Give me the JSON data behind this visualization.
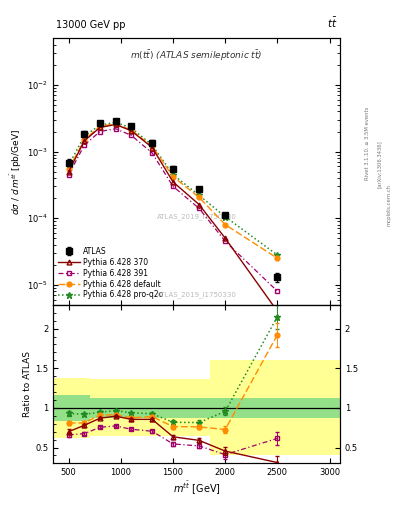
{
  "x_centers": [
    500,
    650,
    800,
    950,
    1100,
    1300,
    1500,
    1750,
    2000,
    2500
  ],
  "atlas_y": [
    0.00068,
    0.00185,
    0.00265,
    0.00285,
    0.0024,
    0.00135,
    0.00055,
    0.00027,
    0.00011,
    1.3e-05
  ],
  "atlas_yerr": [
    8e-05,
    0.00018,
    0.00025,
    0.00025,
    0.0002,
    0.00012,
    5e-05,
    2.5e-05,
    1.1e-05,
    2e-06
  ],
  "py370_y": [
    0.0005,
    0.00145,
    0.0023,
    0.00255,
    0.00205,
    0.00115,
    0.00035,
    0.00016,
    5e-05,
    4e-06
  ],
  "py391_y": [
    0.00045,
    0.00125,
    0.002,
    0.0022,
    0.00175,
    0.00095,
    0.0003,
    0.00014,
    4.5e-05,
    8e-06
  ],
  "pydef_y": [
    0.00055,
    0.0015,
    0.0024,
    0.0026,
    0.0021,
    0.0012,
    0.00042,
    0.000205,
    8e-05,
    2.5e-05
  ],
  "pyq2o_y": [
    0.00063,
    0.0017,
    0.0025,
    0.00275,
    0.00225,
    0.00125,
    0.00045,
    0.00022,
    0.000105,
    2.8e-05
  ],
  "ratio_py370": [
    0.7,
    0.78,
    0.87,
    0.895,
    0.855,
    0.855,
    0.635,
    0.59,
    0.455,
    0.31
  ],
  "ratio_py391": [
    0.66,
    0.675,
    0.755,
    0.772,
    0.73,
    0.705,
    0.545,
    0.52,
    0.41,
    0.615
  ],
  "ratio_pydef": [
    0.81,
    0.81,
    0.91,
    0.913,
    0.875,
    0.89,
    0.764,
    0.76,
    0.727,
    1.92
  ],
  "ratio_pyq2o": [
    0.93,
    0.92,
    0.944,
    0.965,
    0.938,
    0.926,
    0.818,
    0.815,
    0.955,
    2.15
  ],
  "ratio_py370_err": [
    0.03,
    0.02,
    0.015,
    0.015,
    0.015,
    0.02,
    0.025,
    0.03,
    0.05,
    0.08
  ],
  "ratio_py391_err": [
    0.03,
    0.02,
    0.015,
    0.015,
    0.015,
    0.02,
    0.025,
    0.03,
    0.05,
    0.08
  ],
  "ratio_pydef_err": [
    0.03,
    0.02,
    0.015,
    0.015,
    0.015,
    0.02,
    0.025,
    0.03,
    0.05,
    0.15
  ],
  "ratio_pyq2o_err": [
    0.03,
    0.02,
    0.015,
    0.015,
    0.015,
    0.02,
    0.025,
    0.03,
    0.05,
    0.15
  ],
  "band_x_edges": [
    350,
    600,
    700,
    850,
    1000,
    1150,
    1350,
    1600,
    1850,
    2150,
    2800,
    3100
  ],
  "band_green_lo": [
    0.84,
    0.84,
    0.87,
    0.87,
    0.87,
    0.87,
    0.87,
    0.87,
    0.87,
    0.87,
    0.87,
    0.87
  ],
  "band_green_hi": [
    1.16,
    1.16,
    1.13,
    1.13,
    1.13,
    1.13,
    1.13,
    1.13,
    1.13,
    1.13,
    1.13,
    1.13
  ],
  "band_yellow_lo": [
    0.62,
    0.62,
    0.64,
    0.64,
    0.64,
    0.64,
    0.64,
    0.64,
    0.4,
    0.4,
    0.4,
    0.4
  ],
  "band_yellow_hi": [
    1.38,
    1.38,
    1.36,
    1.36,
    1.36,
    1.36,
    1.36,
    1.36,
    1.6,
    1.6,
    1.6,
    1.6
  ],
  "color_atlas": "#000000",
  "color_py370": "#8b0000",
  "color_py391": "#a0006a",
  "color_pydef": "#ff8c00",
  "color_pyq2o": "#228b22",
  "xlim": [
    350,
    3100
  ],
  "ylim_main": [
    5e-06,
    0.05
  ],
  "ylim_ratio": [
    0.3,
    2.3
  ],
  "xticks": [
    500,
    1000,
    1500,
    2000,
    2500,
    3000
  ],
  "yticks_ratio": [
    0.5,
    1.0,
    1.5,
    2.0
  ]
}
